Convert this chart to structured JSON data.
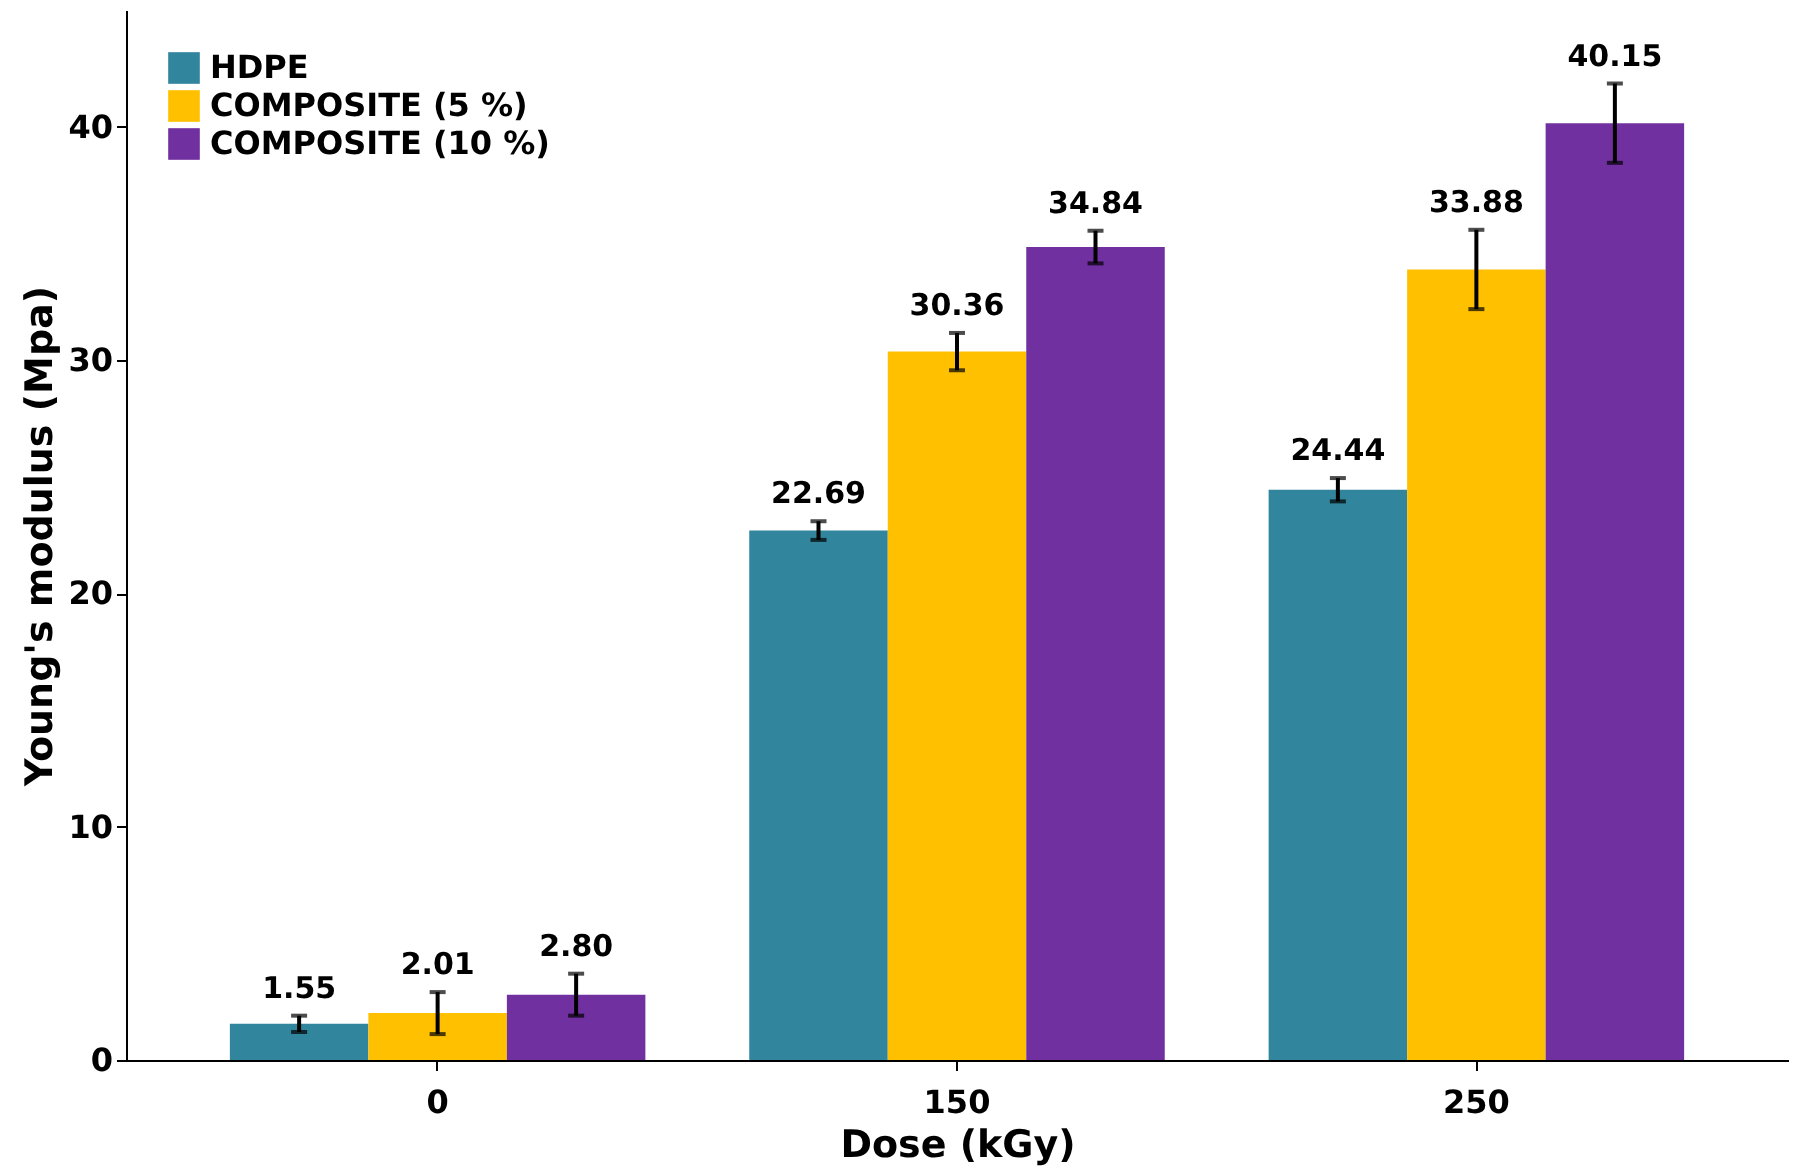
{
  "chart_data": {
    "type": "bar",
    "xlabel": "Dose (kGy)",
    "ylabel": "Young's modulus (Mpa)",
    "categories": [
      "0",
      "150",
      "250"
    ],
    "series": [
      {
        "name": "HDPE",
        "color": "#31859c",
        "values": [
          1.55,
          22.69,
          24.44
        ],
        "errors": [
          0.35,
          0.4,
          0.5
        ],
        "value_labels": [
          "1.55",
          "22.69",
          "24.44"
        ]
      },
      {
        "name": "COMPOSITE (5 %)",
        "color": "#ffc000",
        "values": [
          2.01,
          30.36,
          33.88
        ],
        "errors": [
          0.9,
          0.8,
          1.7
        ],
        "value_labels": [
          "2.01",
          "30.36",
          "33.88"
        ]
      },
      {
        "name": "COMPOSITE (10 %)",
        "color": "#7030a0",
        "values": [
          2.8,
          34.84,
          40.15
        ],
        "errors": [
          0.9,
          0.7,
          1.7
        ],
        "value_labels": [
          "2.80",
          "34.84",
          "40.15"
        ]
      }
    ],
    "ylim": [
      0,
      45
    ],
    "yticks": [
      0,
      10,
      20,
      30,
      40
    ],
    "grid": false,
    "legend": "top left"
  }
}
